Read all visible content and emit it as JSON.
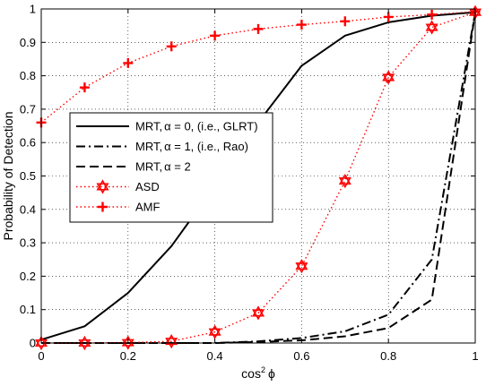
{
  "chart_data": {
    "type": "line",
    "title": "",
    "xlabel_prefix": "cos",
    "xlabel_sup": "2",
    "xlabel_suffix": "ϕ",
    "ylabel": "Probability of Detection",
    "xlim": [
      0,
      1
    ],
    "ylim": [
      0,
      1
    ],
    "grid": true,
    "legend_position": "center-left",
    "xticks": [
      0,
      0.2,
      0.4,
      0.6,
      0.8,
      1
    ],
    "xtick_labels": [
      "0",
      "0.2",
      "0.4",
      "0.6",
      "0.8",
      "1"
    ],
    "yticks": [
      0,
      0.1,
      0.2,
      0.3,
      0.4,
      0.5,
      0.6,
      0.7,
      0.8,
      0.9,
      1
    ],
    "ytick_labels": [
      "0",
      "0.1",
      "0.2",
      "0.3",
      "0.4",
      "0.5",
      "0.6",
      "0.7",
      "0.8",
      "0.9",
      "1"
    ],
    "x": [
      0,
      0.1,
      0.2,
      0.3,
      0.4,
      0.5,
      0.6,
      0.7,
      0.8,
      0.9,
      1.0
    ],
    "series": [
      {
        "name": "MRT, α = 0, (i.e., GLRT)",
        "legend_prefix": "MRT,",
        "legend_alpha": "α",
        "legend_suffix": " = 0, (i.e., GLRT)",
        "color": "#000000",
        "line_style": "solid",
        "marker": "none",
        "values": [
          0.01,
          0.05,
          0.15,
          0.29,
          0.47,
          0.66,
          0.83,
          0.92,
          0.96,
          0.98,
          0.99
        ]
      },
      {
        "name": "MRT, α = 1, (i.e., Rao)",
        "legend_prefix": "MRT,",
        "legend_alpha": "α",
        "legend_suffix": " = 1, (i.e., Rao)",
        "color": "#000000",
        "line_style": "dashdot",
        "marker": "none",
        "values": [
          0.0,
          0.0,
          0.0,
          0.0,
          0.0,
          0.005,
          0.015,
          0.035,
          0.085,
          0.25,
          0.99
        ]
      },
      {
        "name": "MRT, α = 2",
        "legend_prefix": "MRT,",
        "legend_alpha": "α",
        "legend_suffix": " = 2",
        "color": "#000000",
        "line_style": "dashed",
        "marker": "none",
        "values": [
          0.0,
          0.0,
          0.0,
          0.0,
          0.0,
          0.003,
          0.008,
          0.02,
          0.045,
          0.13,
          0.99
        ]
      },
      {
        "name": "ASD",
        "legend_prefix": "ASD",
        "legend_alpha": "",
        "legend_suffix": "",
        "color": "#ff0000",
        "line_style": "dotted",
        "marker": "hexagram",
        "values": [
          0.0,
          0.0,
          0.001,
          0.005,
          0.033,
          0.09,
          0.23,
          0.485,
          0.795,
          0.945,
          0.99
        ]
      },
      {
        "name": "AMF",
        "legend_prefix": "AMF",
        "legend_alpha": "",
        "legend_suffix": "",
        "color": "#ff0000",
        "line_style": "dotted",
        "marker": "plus",
        "values": [
          0.66,
          0.765,
          0.838,
          0.888,
          0.92,
          0.94,
          0.953,
          0.963,
          0.976,
          0.983,
          0.992
        ]
      }
    ]
  }
}
